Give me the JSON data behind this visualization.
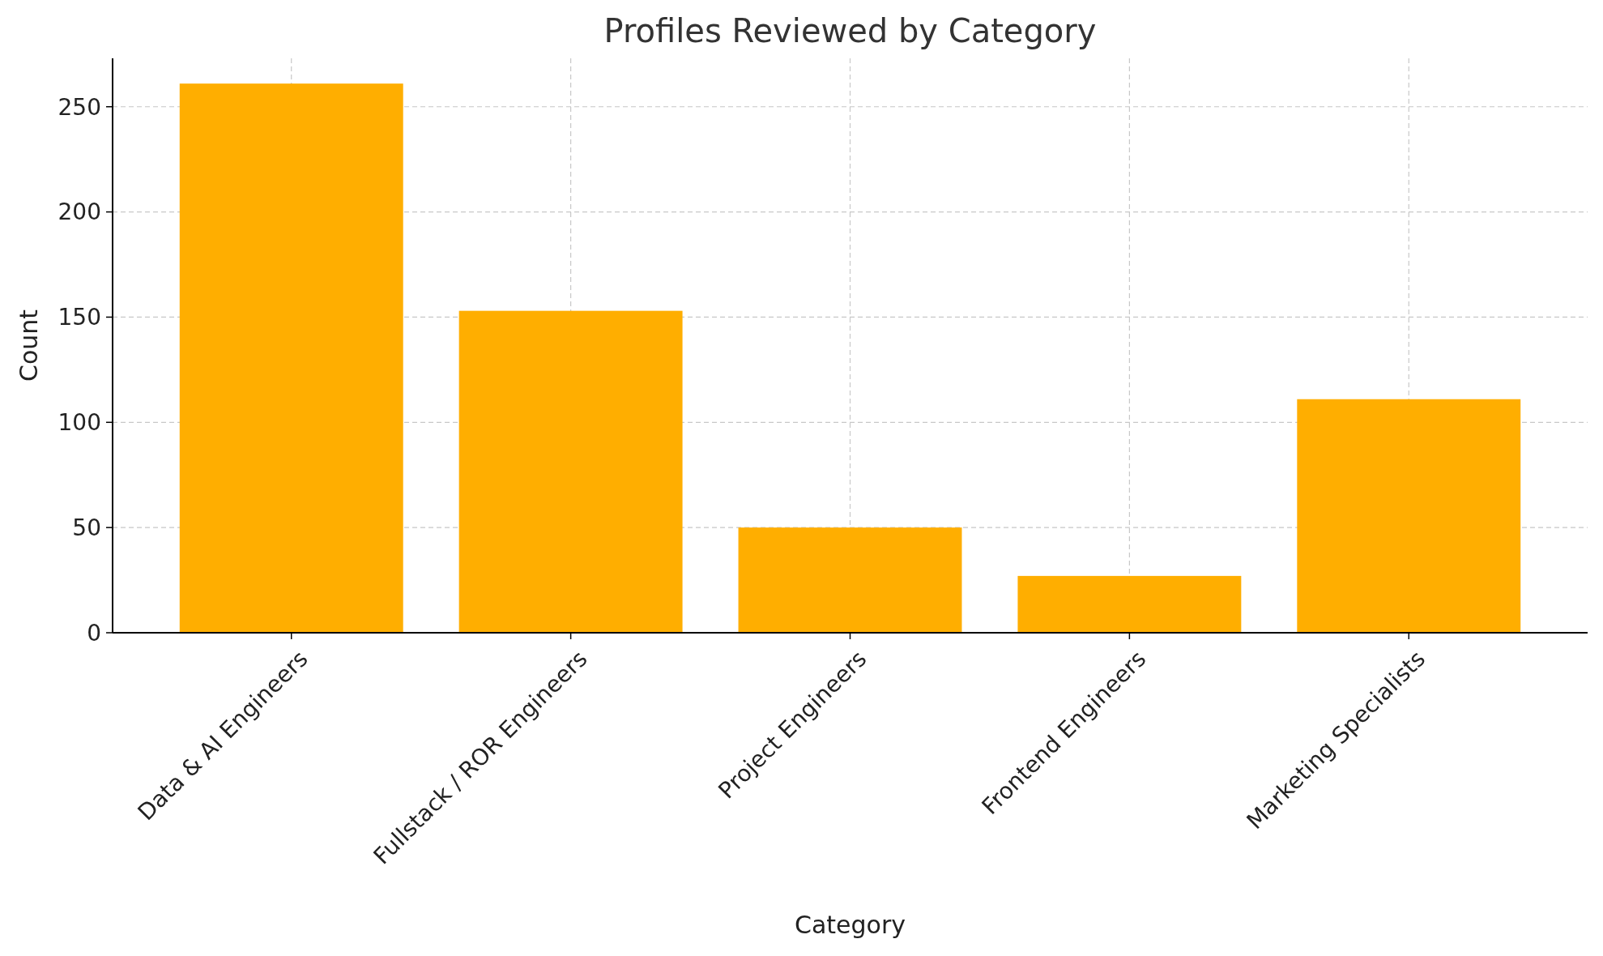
{
  "chart_data": {
    "type": "bar",
    "title": "Profiles Reviewed by Category",
    "xlabel": "Category",
    "ylabel": "Count",
    "categories": [
      "Data & AI Engineers",
      "Fullstack / ROR Engineers",
      "Project Engineers",
      "Frontend Engineers",
      "Marketing Specialists"
    ],
    "values": [
      261,
      153,
      50,
      27,
      111
    ],
    "color": "#ffae00",
    "ylim": [
      0,
      273
    ],
    "yticks": [
      0,
      50,
      100,
      150,
      200,
      250
    ],
    "grid": true
  }
}
